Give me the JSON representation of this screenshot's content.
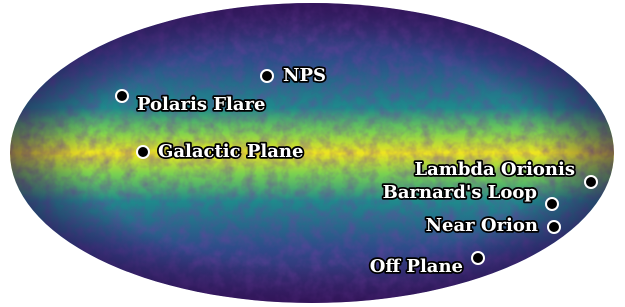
{
  "map": {
    "regions": [
      {
        "label": "NPS"
      },
      {
        "label": "Polaris Flare"
      },
      {
        "label": "Galactic Plane"
      },
      {
        "label": "Lambda Orionis"
      },
      {
        "label": "Barnard's Loop"
      },
      {
        "label": "Near Orion"
      },
      {
        "label": "Off Plane"
      }
    ]
  }
}
